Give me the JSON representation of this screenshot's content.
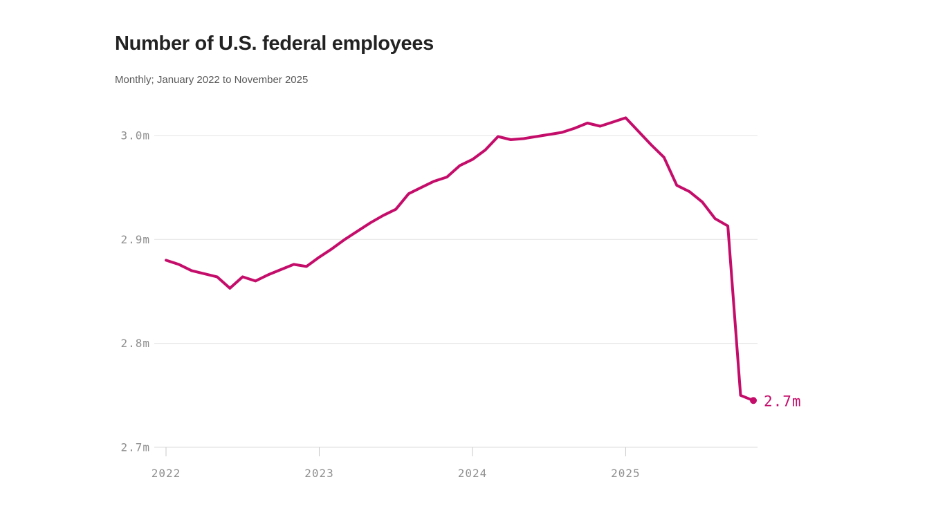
{
  "header": {
    "title": "Number of U.S. federal employees",
    "subtitle": "Monthly; January 2022 to November 2025"
  },
  "colors": {
    "line": "#c40d6a",
    "grid": "#e3e3e3",
    "bottom_axis": "#d7d7d7",
    "tick": "#c9c9c9",
    "axis_label": "#8f8f8f",
    "title": "#222222",
    "subtitle": "#595959",
    "background": "#ffffff"
  },
  "chart_data": {
    "type": "line",
    "title": "Number of U.S. federal employees",
    "subtitle": "Monthly; January 2022 to November 2025",
    "unit": "millions of employees",
    "grid": true,
    "legend": false,
    "ylim": [
      2.7,
      3.04
    ],
    "y_axis": {
      "ticks": [
        {
          "label": "3.0m",
          "value": 3.0
        },
        {
          "label": "2.9m",
          "value": 2.9
        },
        {
          "label": "2.8m",
          "value": 2.8
        },
        {
          "label": "2.7m",
          "value": 2.7
        }
      ]
    },
    "x_axis": {
      "ticks": [
        {
          "label": "2022",
          "month_index": 0
        },
        {
          "label": "2023",
          "month_index": 12
        },
        {
          "label": "2024",
          "month_index": 24
        },
        {
          "label": "2025",
          "month_index": 36
        }
      ]
    },
    "end_label": "2.7m",
    "months": [
      "Jan 2022",
      "Feb 2022",
      "Mar 2022",
      "Apr 2022",
      "May 2022",
      "Jun 2022",
      "Jul 2022",
      "Aug 2022",
      "Sep 2022",
      "Oct 2022",
      "Nov 2022",
      "Dec 2022",
      "Jan 2023",
      "Feb 2023",
      "Mar 2023",
      "Apr 2023",
      "May 2023",
      "Jun 2023",
      "Jul 2023",
      "Aug 2023",
      "Sep 2023",
      "Oct 2023",
      "Nov 2023",
      "Dec 2023",
      "Jan 2024",
      "Feb 2024",
      "Mar 2024",
      "Apr 2024",
      "May 2024",
      "Jun 2024",
      "Jul 2024",
      "Aug 2024",
      "Sep 2024",
      "Oct 2024",
      "Nov 2024",
      "Dec 2024",
      "Jan 2025",
      "Feb 2025",
      "Mar 2025",
      "Apr 2025",
      "May 2025",
      "Jun 2025",
      "Jul 2025",
      "Aug 2025",
      "Sep 2025",
      "Oct 2025",
      "Nov 2025"
    ],
    "values": [
      2.88,
      2.876,
      2.87,
      2.867,
      2.864,
      2.853,
      2.864,
      2.86,
      2.866,
      2.871,
      2.876,
      2.874,
      2.883,
      2.891,
      2.9,
      2.908,
      2.916,
      2.923,
      2.929,
      2.944,
      2.95,
      2.956,
      2.96,
      2.971,
      2.977,
      2.986,
      2.999,
      2.996,
      2.997,
      2.999,
      3.001,
      3.003,
      3.007,
      3.012,
      3.009,
      3.013,
      3.017,
      3.004,
      2.991,
      2.979,
      2.952,
      2.946,
      2.936,
      2.92,
      2.913,
      2.75,
      2.745
    ]
  }
}
